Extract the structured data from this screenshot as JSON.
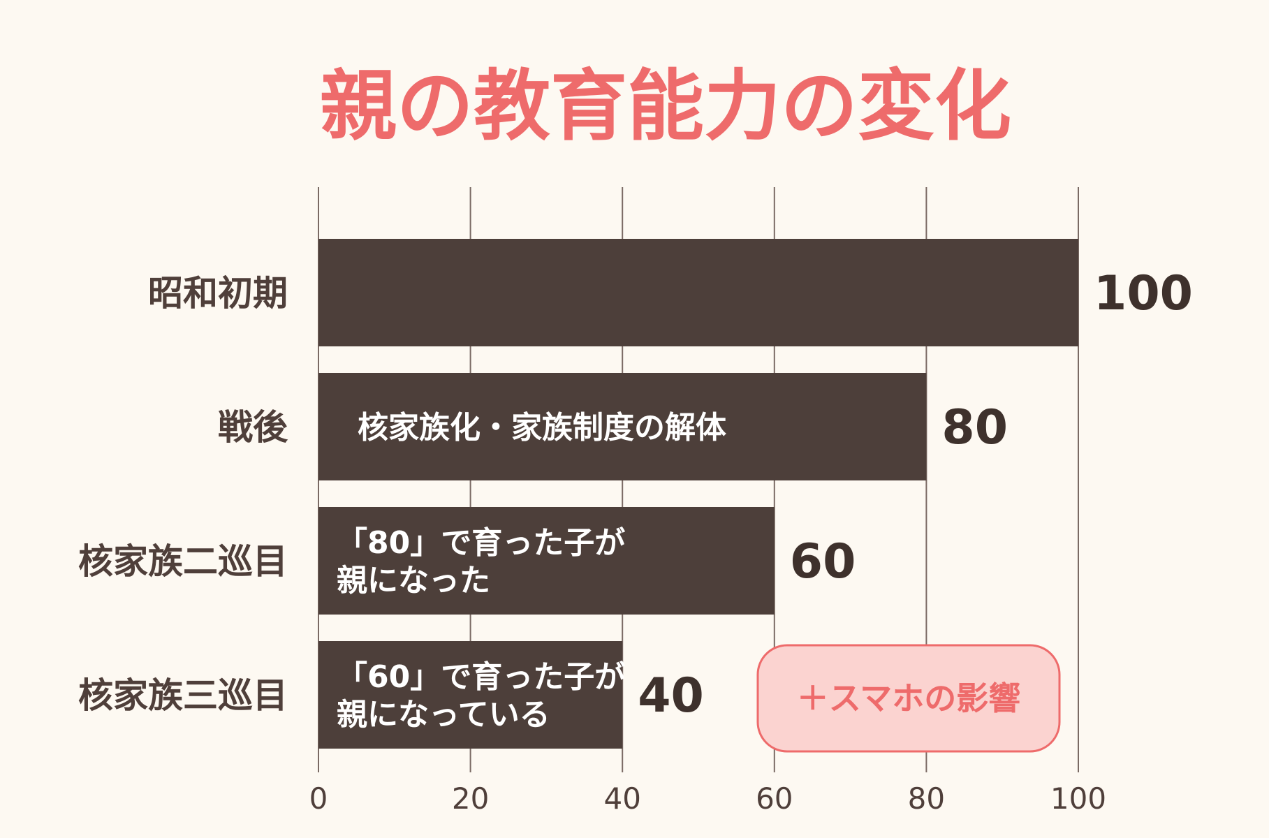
{
  "colors": {
    "title": "#ee6b6b",
    "bar": "#4d3f3a",
    "grid": "#7a6a64",
    "label": "#4f3f3a",
    "callout_fill": "#fbd3d0",
    "callout_stroke": "#ee6b6b",
    "background": "#fdf9f2"
  },
  "chart_data": {
    "type": "bar",
    "orientation": "horizontal",
    "title": "親の教育能力の変化",
    "categories": [
      "昭和初期",
      "戦後",
      "核家族二巡目",
      "核家族三巡目"
    ],
    "values": [
      100,
      80,
      60,
      40
    ],
    "value_labels": [
      "100",
      "80",
      "60",
      "40"
    ],
    "bar_notes": [
      [],
      [
        "核家族化・家族制度の解体"
      ],
      [
        "「80」で育った子が",
        "親になった"
      ],
      [
        "「60」で育った子が",
        "親になっている"
      ]
    ],
    "xlim": [
      0,
      100
    ],
    "xticks": [
      "0",
      "20",
      "40",
      "60",
      "80",
      "100"
    ],
    "grid": true,
    "annotation": "＋スマホの影響"
  }
}
